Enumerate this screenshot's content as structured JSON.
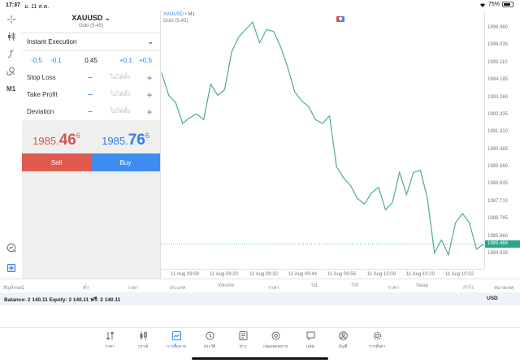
{
  "status_bar": {
    "time": "17:37",
    "date": "อ. 11 ส.ค.",
    "battery": "75%"
  },
  "left_toolbar": {
    "items": [
      {
        "name": "crosshair-icon",
        "glyph": "⌖"
      },
      {
        "name": "candlestick-icon",
        "glyph": "⫶"
      },
      {
        "name": "function-icon",
        "glyph": "ƒ"
      },
      {
        "name": "objects-icon",
        "glyph": "⟟"
      },
      {
        "name": "timeframe-button",
        "glyph": "M1"
      }
    ],
    "bottom_items": [
      {
        "name": "chart-search-icon",
        "glyph": "◔"
      },
      {
        "name": "add-order-icon",
        "glyph": "⊞"
      }
    ]
  },
  "order_panel": {
    "symbol": "XAUUSD",
    "symbol_chevron": "⌄",
    "description": "Gold (5-45)",
    "execution_type": "Instant Execution",
    "execution_chevron": "⌄",
    "volume": {
      "minus_large": "-0.5",
      "minus_small": "-0.1",
      "value": "0.45",
      "plus_small": "+0.1",
      "plus_large": "+0.5"
    },
    "params": [
      {
        "label": "Stop Loss",
        "value": "ไม่ได้ตั้ง",
        "minus": "−",
        "plus": "+"
      },
      {
        "label": "Take Profit",
        "value": "ไม่ได้ตั้ง",
        "minus": "−",
        "plus": "+"
      },
      {
        "label": "Deviation",
        "value": "ไม่ได้ตั้ง",
        "minus": "−",
        "plus": "+"
      }
    ],
    "bid": {
      "prefix": "1985.",
      "big": "46",
      "sup": "6"
    },
    "ask": {
      "prefix": "1985.",
      "big": "76",
      "sup": "6"
    },
    "sell_label": "Sell",
    "buy_label": "Buy"
  },
  "chart": {
    "symbol": "XAUUSD",
    "separator": " • ",
    "timeframe": "M1",
    "description": "Gold (5-45)",
    "line_color": "#4caf85",
    "current_price": "1985.466",
    "y_labels": [
      "1996.960",
      "1996.035",
      "1995.110",
      "1994.185",
      "1993.260",
      "1992.335",
      "1991.410",
      "1990.485",
      "1989.560",
      "1988.635",
      "1987.710",
      "1986.785",
      "1985.860",
      "1984.935"
    ],
    "x_labels": [
      "11 Aug 09:08",
      "11 Aug 09:20",
      "11 Aug 09:32",
      "11 Aug 09:44",
      "11 Aug 09:56",
      "11 Aug 10:08",
      "11 Aug 10:20",
      "11 Aug 10:32"
    ]
  },
  "chart_data": {
    "type": "line",
    "title": "XAUUSD • M1",
    "subtitle": "Gold (5-45)",
    "xlabel": "",
    "ylabel": "",
    "ylim": [
      1984.5,
      1997.8
    ],
    "x": [
      "09:02",
      "09:04",
      "09:06",
      "09:08",
      "09:10",
      "09:12",
      "09:14",
      "09:16",
      "09:18",
      "09:20",
      "09:22",
      "09:24",
      "09:26",
      "09:28",
      "09:30",
      "09:32",
      "09:34",
      "09:36",
      "09:38",
      "09:40",
      "09:42",
      "09:44",
      "09:46",
      "09:48",
      "09:50",
      "09:52",
      "09:54",
      "09:56",
      "09:58",
      "10:00",
      "10:02",
      "10:04",
      "10:06",
      "10:08",
      "10:10",
      "10:12",
      "10:14",
      "10:16",
      "10:18",
      "10:20",
      "10:22",
      "10:24",
      "10:26",
      "10:28",
      "10:30",
      "10:32",
      "10:34"
    ],
    "values": [
      1994.6,
      1993.4,
      1993.0,
      1991.9,
      1992.2,
      1992.4,
      1992.1,
      1994.0,
      1993.4,
      1993.7,
      1995.7,
      1996.5,
      1996.9,
      1997.3,
      1996.2,
      1996.9,
      1996.8,
      1996.0,
      1994.9,
      1993.6,
      1993.1,
      1992.8,
      1992.1,
      1991.9,
      1992.3,
      1989.6,
      1989.0,
      1988.6,
      1987.9,
      1987.6,
      1988.2,
      1988.5,
      1987.3,
      1987.7,
      1989.3,
      1988.1,
      1989.3,
      1989.4,
      1987.9,
      1985.0,
      1985.7,
      1984.9,
      1986.6,
      1987.1,
      1986.6,
      1985.2,
      1985.47
    ],
    "current_price_line": 1985.466,
    "grid": false
  },
  "positions": {
    "columns": [
      "สัญลักษณ์",
      "ตั๋ว",
      "เวลา",
      "ประเภท",
      "Volume",
      "ราคา",
      "S/L",
      "T/P",
      "ราคา",
      "Swap",
      "กำไร",
      "หมายเหตุ"
    ]
  },
  "balance": {
    "text": "Balance: 2 140.11 Equity: 2 140.11 ฟรี: 2 140.11",
    "currency": "USD"
  },
  "bottom_nav": [
    {
      "name": "quotes",
      "label": "ราคา",
      "glyph": "⇅",
      "active": false
    },
    {
      "name": "charts",
      "label": "กราฟ",
      "glyph": "⫶",
      "active": false
    },
    {
      "name": "trade",
      "label": "การซื้อขาย",
      "glyph": "⟋",
      "active": true
    },
    {
      "name": "history",
      "label": "ประวัติ",
      "glyph": "◷",
      "active": false
    },
    {
      "name": "news",
      "label": "ข่าว",
      "glyph": "▤",
      "active": false
    },
    {
      "name": "mailbox",
      "label": "กล่องจดหมาย",
      "glyph": "@",
      "active": false
    },
    {
      "name": "chat",
      "label": "แชท",
      "glyph": "▭",
      "active": false
    },
    {
      "name": "accounts",
      "label": "บัญชี",
      "glyph": "◉",
      "active": false
    },
    {
      "name": "settings",
      "label": "การตั้งค่า",
      "glyph": "⚙",
      "active": false
    }
  ]
}
